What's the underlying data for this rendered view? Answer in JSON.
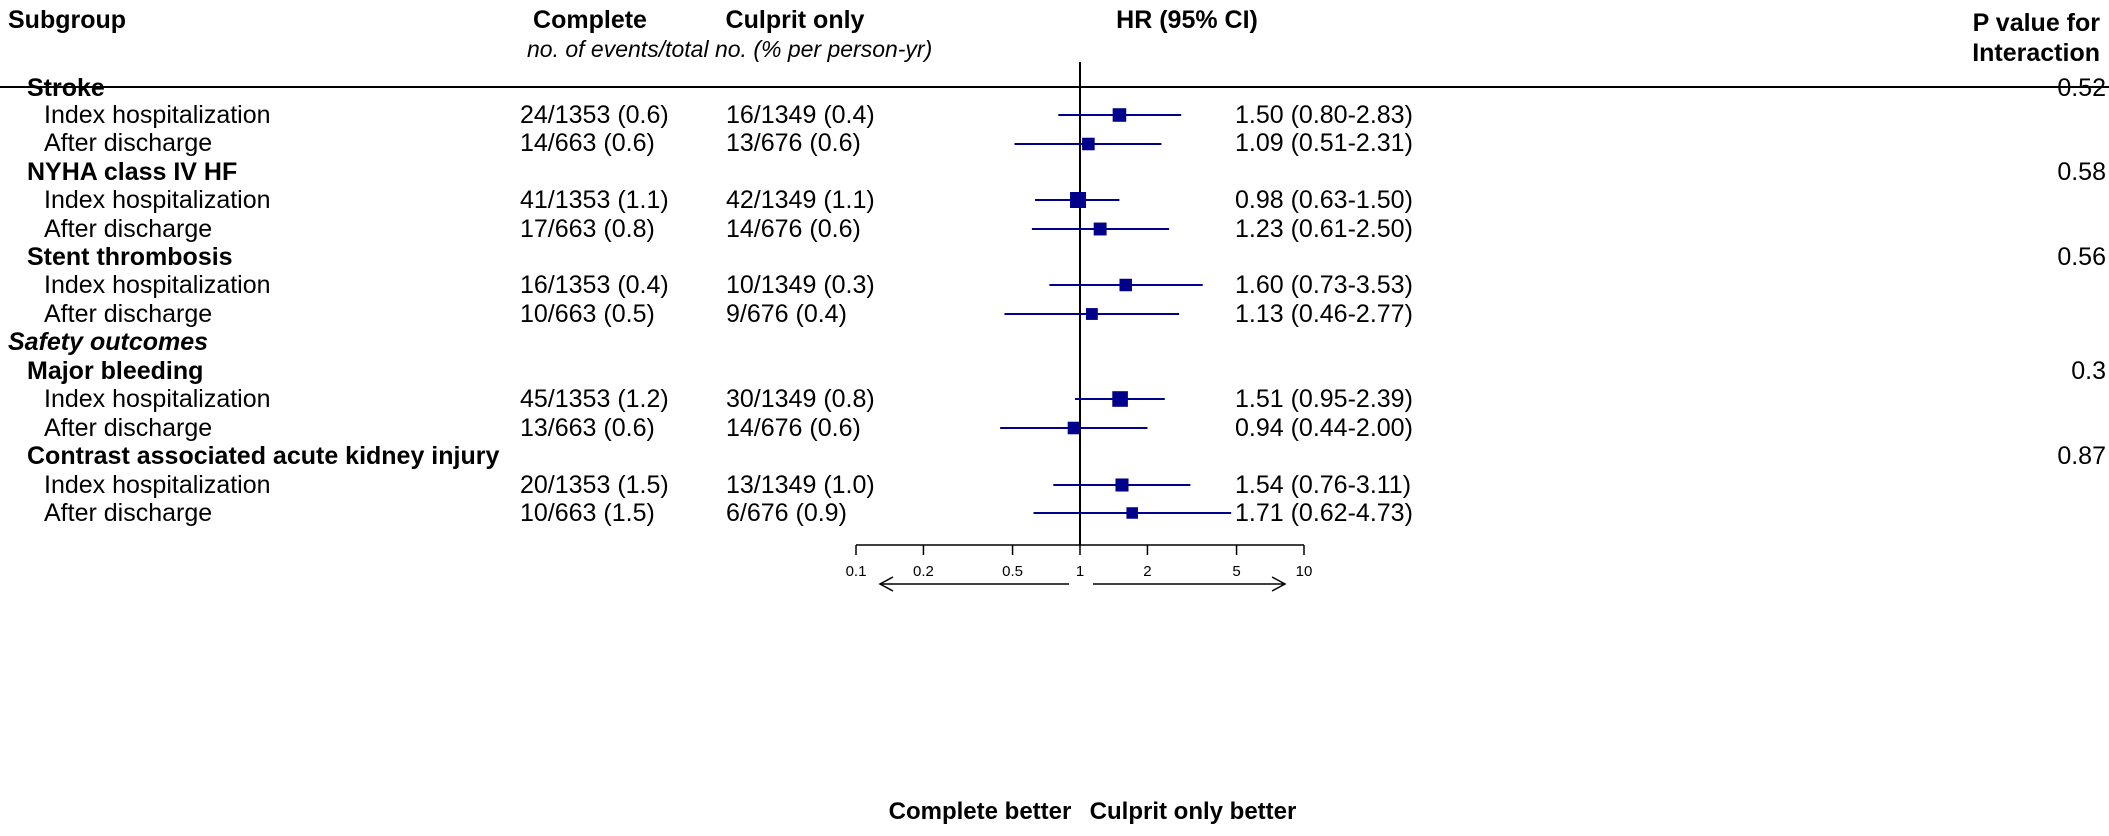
{
  "header": {
    "subgroup": "Subgroup",
    "complete": "Complete",
    "culprit_only": "Culprit only",
    "subheader": "no. of events/total no. (% per person-yr)",
    "hr": "HR (95% CI)",
    "pvalue_line1": "P value for",
    "pvalue_line2": "Interaction"
  },
  "section_safety": "Safety outcomes",
  "groups": [
    {
      "label": "Stroke",
      "p": "0.52",
      "rows": [
        {
          "label": "Index hospitalization",
          "complete": "24/1353 (0.6)",
          "culprit": "16/1349 (0.4)",
          "hr_text": "1.50 (0.80-2.83)"
        },
        {
          "label": "After discharge",
          "complete": "14/663 (0.6)",
          "culprit": "13/676 (0.6)",
          "hr_text": "1.09 (0.51-2.31)"
        }
      ]
    },
    {
      "label": "NYHA class IV HF",
      "p": "0.58",
      "rows": [
        {
          "label": "Index hospitalization",
          "complete": "41/1353 (1.1)",
          "culprit": "42/1349 (1.1)",
          "hr_text": "0.98 (0.63-1.50)"
        },
        {
          "label": "After discharge",
          "complete": "17/663 (0.8)",
          "culprit": "14/676 (0.6)",
          "hr_text": "1.23 (0.61-2.50)"
        }
      ]
    },
    {
      "label": "Stent thrombosis",
      "p": "0.56",
      "rows": [
        {
          "label": "Index hospitalization",
          "complete": "16/1353 (0.4)",
          "culprit": "10/1349 (0.3)",
          "hr_text": "1.60 (0.73-3.53)"
        },
        {
          "label": "After discharge",
          "complete": "10/663 (0.5)",
          "culprit": "9/676 (0.4)",
          "hr_text": "1.13 (0.46-2.77)"
        }
      ]
    },
    {
      "label": "Major bleeding",
      "p": "0.3",
      "rows": [
        {
          "label": "Index hospitalization",
          "complete": "45/1353 (1.2)",
          "culprit": "30/1349 (0.8)",
          "hr_text": "1.51 (0.95-2.39)"
        },
        {
          "label": "After discharge",
          "complete": "13/663 (0.6)",
          "culprit": "14/676 (0.6)",
          "hr_text": "0.94 (0.44-2.00)"
        }
      ]
    },
    {
      "label": "Contrast associated acute kidney injury",
      "p": "0.87",
      "rows": [
        {
          "label": "Index hospitalization",
          "complete": "20/1353 (1.5)",
          "culprit": "13/1349 (1.0)",
          "hr_text": "1.54 (0.76-3.11)"
        },
        {
          "label": "After discharge",
          "complete": "10/663 (1.5)",
          "culprit": "6/676 (0.9)",
          "hr_text": "1.71 (0.62-4.73)"
        }
      ]
    }
  ],
  "axis": {
    "left_label": "Complete better",
    "right_label": "Culprit only better"
  },
  "chart_data": {
    "type": "scatter",
    "subtype": "forest",
    "x_scale": "log",
    "xlim": [
      0.1,
      10
    ],
    "reference_line": 1,
    "ticks": [
      0.1,
      0.2,
      0.5,
      1,
      2,
      5,
      10
    ],
    "tick_labels": [
      "0.1",
      "0.2",
      "0.5",
      "1",
      "2",
      "5",
      "10"
    ],
    "marker_color": "#00008B",
    "rows": [
      {
        "group": "Stroke",
        "label": "Index hospitalization",
        "hr": 1.5,
        "lo": 0.8,
        "hi": 2.83,
        "events_total": 40
      },
      {
        "group": "Stroke",
        "label": "After discharge",
        "hr": 1.09,
        "lo": 0.51,
        "hi": 2.31,
        "events_total": 27
      },
      {
        "group": "NYHA class IV HF",
        "label": "Index hospitalization",
        "hr": 0.98,
        "lo": 0.63,
        "hi": 1.5,
        "events_total": 83
      },
      {
        "group": "NYHA class IV HF",
        "label": "After discharge",
        "hr": 1.23,
        "lo": 0.61,
        "hi": 2.5,
        "events_total": 31
      },
      {
        "group": "Stent thrombosis",
        "label": "Index hospitalization",
        "hr": 1.6,
        "lo": 0.73,
        "hi": 3.53,
        "events_total": 26
      },
      {
        "group": "Stent thrombosis",
        "label": "After discharge",
        "hr": 1.13,
        "lo": 0.46,
        "hi": 2.77,
        "events_total": 19
      },
      {
        "group": "Major bleeding",
        "label": "Index hospitalization",
        "hr": 1.51,
        "lo": 0.95,
        "hi": 2.39,
        "events_total": 75
      },
      {
        "group": "Major bleeding",
        "label": "After discharge",
        "hr": 0.94,
        "lo": 0.44,
        "hi": 2.0,
        "events_total": 27
      },
      {
        "group": "Contrast associated acute kidney injury",
        "label": "Index hospitalization",
        "hr": 1.54,
        "lo": 0.76,
        "hi": 3.11,
        "events_total": 33
      },
      {
        "group": "Contrast associated acute kidney injury",
        "label": "After discharge",
        "hr": 1.71,
        "lo": 0.62,
        "hi": 4.73,
        "events_total": 16
      }
    ]
  }
}
